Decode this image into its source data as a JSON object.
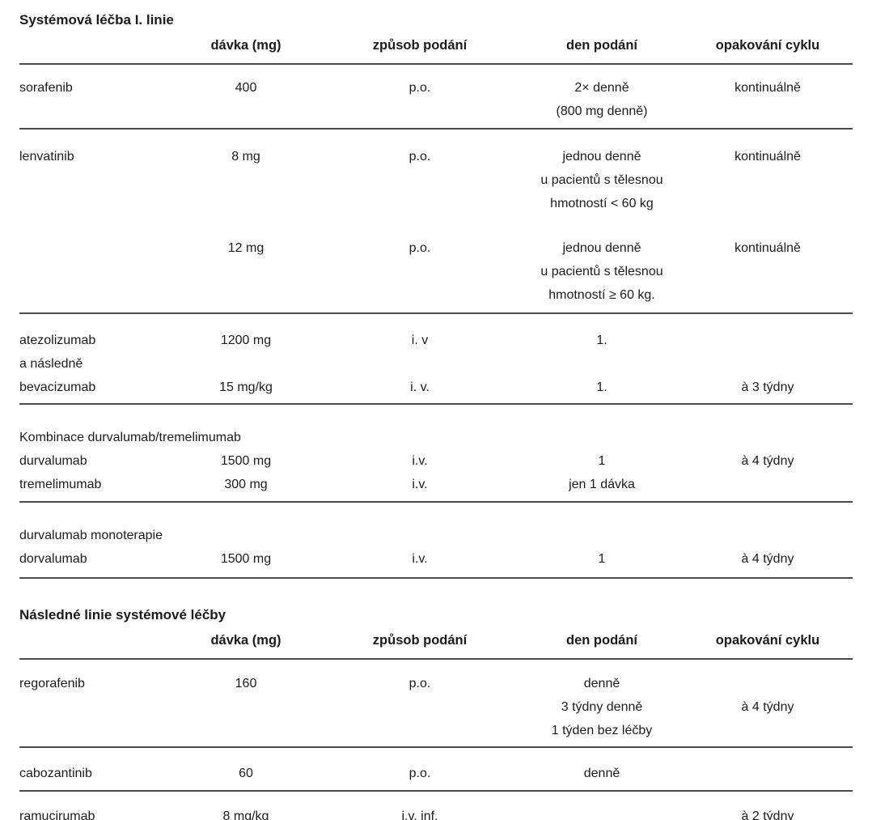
{
  "page": {
    "background": "#ffffff",
    "text_color": "#1c1c1c",
    "rule_color": "#4a4a4a"
  },
  "table1": {
    "title": "Systémová léčba I. linie",
    "headers": {
      "drug": "",
      "dose": "dávka (mg)",
      "route": "způsob podání",
      "day": "den podání",
      "cycle": "opakování cyklu"
    },
    "rows": {
      "sorafenib": {
        "drug": "sorafenib",
        "dose": "400",
        "route": "p.o.",
        "day1": "2× denně",
        "day2": "(800 mg denně)",
        "cycle": "kontinuálně"
      },
      "lenvatinib8": {
        "drug": "lenvatinib",
        "dose": "8 mg",
        "route": "p.o.",
        "day1": "jednou denně",
        "day2": "u pacientů s tělesnou",
        "day3": "hmotností < 60 kg",
        "cycle": "kontinuálně"
      },
      "lenvatinib12": {
        "drug": "",
        "dose": "12 mg",
        "route": "p.o.",
        "day1": "jednou denně",
        "day2": "u pacientů s tělesnou",
        "day3": "hmotností ≥ 60 kg.",
        "cycle": "kontinuálně"
      },
      "atezolizumab": {
        "drug": "atezolizumab",
        "dose": "1200 mg",
        "route": "i. v",
        "day": "1.",
        "cycle": ""
      },
      "anasledne": {
        "drug": "a následně"
      },
      "bevacizumab": {
        "drug": "bevacizumab",
        "dose": "15 mg/kg",
        "route": "i. v.",
        "day": "1.",
        "cycle": "à 3 týdny"
      },
      "kombinace_group": "Kombinace durvalumab/tremelimumab",
      "durvalumab": {
        "drug": "durvalumab",
        "dose": "1500 mg",
        "route": "i.v.",
        "day": "1",
        "cycle": "à 4 týdny"
      },
      "tremelimumab": {
        "drug": "tremelimumab",
        "dose": "300 mg",
        "route": "i.v.",
        "day": "jen 1 dávka",
        "cycle": ""
      },
      "monoterapie_group": "durvalumab monoterapie",
      "dorvalumab": {
        "drug": "dorvalumab",
        "dose": "1500 mg",
        "route": "i.v.",
        "day": "1",
        "cycle": "à 4 týdny"
      }
    }
  },
  "table2": {
    "title": "Následné linie systémové léčby",
    "headers": {
      "drug": "",
      "dose": "dávka (mg)",
      "route": "způsob podání",
      "day": "den podání",
      "cycle": "opakování cyklu"
    },
    "rows": {
      "regorafenib": {
        "drug": "regorafenib",
        "dose": "160",
        "route": "p.o.",
        "day1": "denně",
        "day2": "3 týdny denně",
        "day3": "1 týden bez léčby",
        "cycle": "à 4 týdny"
      },
      "cabozantinib": {
        "drug": "cabozantinib",
        "dose": "60",
        "route": "p.o.",
        "day": "denně",
        "cycle": ""
      },
      "ramucirumab": {
        "drug": "ramucirumab",
        "dose": "8 mg/kg",
        "route": "i.v. inf.",
        "day": "",
        "cycle": "à 2 týdny"
      }
    }
  }
}
